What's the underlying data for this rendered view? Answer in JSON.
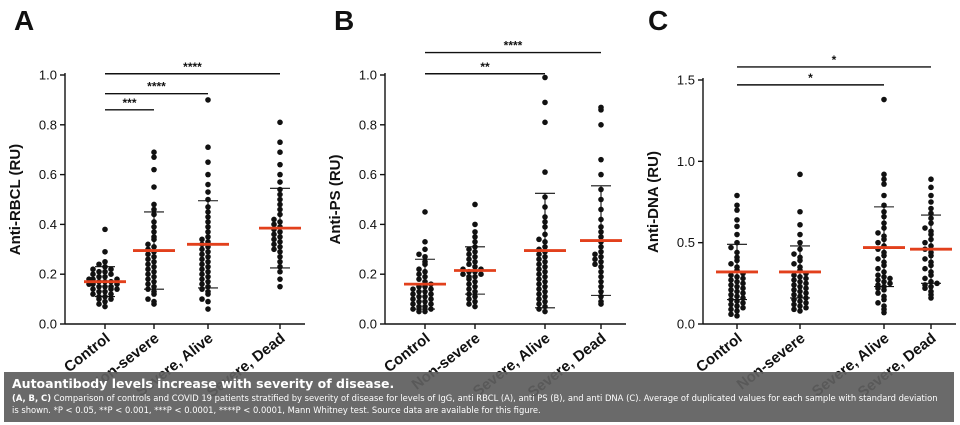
{
  "chart_data": [
    {
      "type": "scatter",
      "panel_label": "A",
      "ylabel": "Anti-RBCL (RU)",
      "ylim": [
        0,
        1.0
      ],
      "yticks": [
        "0.0",
        "0.2",
        "0.4",
        "0.6",
        "0.8",
        "1.0"
      ],
      "ytick_values": [
        0,
        0.2,
        0.4,
        0.6,
        0.8,
        1.0
      ],
      "categories": [
        "Control",
        "Non-severe",
        "Severe, Alive",
        "Severe, Dead"
      ],
      "means": [
        0.17,
        0.295,
        0.32,
        0.385
      ],
      "sd_upper": [
        0.23,
        0.45,
        0.495,
        0.545
      ],
      "sd_lower": [
        0.11,
        0.14,
        0.145,
        0.225
      ],
      "points": [
        [
          0.38,
          0.29,
          0.25,
          0.24,
          0.23,
          0.22,
          0.22,
          0.21,
          0.21,
          0.2,
          0.2,
          0.19,
          0.19,
          0.18,
          0.18,
          0.18,
          0.17,
          0.17,
          0.17,
          0.16,
          0.16,
          0.16,
          0.15,
          0.15,
          0.15,
          0.14,
          0.14,
          0.14,
          0.13,
          0.13,
          0.12,
          0.12,
          0.11,
          0.11,
          0.1,
          0.1,
          0.09,
          0.08,
          0.07
        ],
        [
          0.69,
          0.67,
          0.62,
          0.55,
          0.48,
          0.46,
          0.44,
          0.41,
          0.39,
          0.37,
          0.35,
          0.34,
          0.32,
          0.31,
          0.3,
          0.29,
          0.28,
          0.27,
          0.26,
          0.25,
          0.24,
          0.23,
          0.22,
          0.21,
          0.2,
          0.19,
          0.18,
          0.17,
          0.16,
          0.15,
          0.14,
          0.13,
          0.12,
          0.1,
          0.09,
          0.08
        ],
        [
          0.9,
          0.71,
          0.65,
          0.6,
          0.56,
          0.53,
          0.5,
          0.47,
          0.45,
          0.43,
          0.41,
          0.39,
          0.37,
          0.35,
          0.34,
          0.33,
          0.32,
          0.31,
          0.3,
          0.29,
          0.28,
          0.27,
          0.26,
          0.25,
          0.24,
          0.23,
          0.22,
          0.21,
          0.2,
          0.19,
          0.18,
          0.17,
          0.16,
          0.15,
          0.14,
          0.13,
          0.12,
          0.1,
          0.09,
          0.06
        ],
        [
          0.81,
          0.73,
          0.69,
          0.64,
          0.6,
          0.57,
          0.54,
          0.52,
          0.5,
          0.48,
          0.46,
          0.44,
          0.42,
          0.41,
          0.4,
          0.39,
          0.38,
          0.37,
          0.36,
          0.35,
          0.34,
          0.33,
          0.32,
          0.31,
          0.3,
          0.29,
          0.27,
          0.25,
          0.23,
          0.21,
          0.18,
          0.15
        ]
      ],
      "significance": [
        {
          "from": 0,
          "to": 1,
          "label": "***",
          "y": 0.86
        },
        {
          "from": 0,
          "to": 2,
          "label": "****",
          "y": 0.925
        },
        {
          "from": 0,
          "to": 3,
          "label": "****",
          "y": 1.005
        }
      ]
    },
    {
      "type": "scatter",
      "panel_label": "B",
      "ylabel": "Anti-PS (RU)",
      "ylim": [
        0,
        1.0
      ],
      "yticks": [
        "0.0",
        "0.2",
        "0.4",
        "0.6",
        "0.8",
        "1.0"
      ],
      "ytick_values": [
        0,
        0.2,
        0.4,
        0.6,
        0.8,
        1.0
      ],
      "categories": [
        "Control",
        "Non-severe",
        "Severe, Alive",
        "Severe, Dead"
      ],
      "means": [
        0.16,
        0.215,
        0.295,
        0.335
      ],
      "sd_upper": [
        0.26,
        0.31,
        0.525,
        0.555
      ],
      "sd_lower": [
        0.06,
        0.12,
        0.065,
        0.115
      ],
      "points": [
        [
          0.45,
          0.33,
          0.3,
          0.28,
          0.27,
          0.25,
          0.24,
          0.22,
          0.21,
          0.2,
          0.19,
          0.18,
          0.17,
          0.16,
          0.15,
          0.15,
          0.14,
          0.14,
          0.13,
          0.13,
          0.12,
          0.12,
          0.11,
          0.11,
          0.1,
          0.1,
          0.09,
          0.09,
          0.08,
          0.08,
          0.07,
          0.07,
          0.06,
          0.06,
          0.05,
          0.05
        ],
        [
          0.48,
          0.4,
          0.37,
          0.35,
          0.33,
          0.31,
          0.3,
          0.29,
          0.28,
          0.27,
          0.26,
          0.25,
          0.24,
          0.23,
          0.22,
          0.22,
          0.21,
          0.21,
          0.2,
          0.2,
          0.19,
          0.19,
          0.18,
          0.17,
          0.16,
          0.15,
          0.14,
          0.13,
          0.12,
          0.11,
          0.1,
          0.09,
          0.08,
          0.07
        ],
        [
          0.99,
          0.89,
          0.81,
          0.61,
          0.51,
          0.47,
          0.43,
          0.41,
          0.39,
          0.36,
          0.34,
          0.33,
          0.31,
          0.3,
          0.29,
          0.28,
          0.27,
          0.26,
          0.25,
          0.24,
          0.23,
          0.22,
          0.21,
          0.2,
          0.19,
          0.18,
          0.17,
          0.16,
          0.15,
          0.14,
          0.13,
          0.12,
          0.11,
          0.1,
          0.09,
          0.08,
          0.07,
          0.06,
          0.05
        ],
        [
          0.87,
          0.86,
          0.8,
          0.66,
          0.6,
          0.54,
          0.5,
          0.46,
          0.42,
          0.39,
          0.37,
          0.35,
          0.33,
          0.31,
          0.29,
          0.28,
          0.27,
          0.26,
          0.25,
          0.24,
          0.23,
          0.21,
          0.19,
          0.17,
          0.15,
          0.13,
          0.11,
          0.09,
          0.08
        ]
      ],
      "significance": [
        {
          "from": 0,
          "to": 2,
          "label": "**",
          "y": 1.005
        },
        {
          "from": 0,
          "to": 3,
          "label": "****",
          "y": 1.09
        }
      ]
    },
    {
      "type": "scatter",
      "panel_label": "C",
      "ylabel": "Anti-DNA (RU)",
      "ylim": [
        0,
        1.5
      ],
      "yticks": [
        "0.0",
        "0.5",
        "1.0",
        "1.5"
      ],
      "ytick_values": [
        0,
        0.5,
        1.0,
        1.5
      ],
      "categories": [
        "Control",
        "Non-severe",
        "Severe, Alive",
        "Severe, Dead"
      ],
      "means": [
        0.32,
        0.32,
        0.47,
        0.46
      ],
      "sd_upper": [
        0.49,
        0.48,
        0.72,
        0.67
      ],
      "sd_lower": [
        0.15,
        0.16,
        0.23,
        0.25
      ],
      "points": [
        [
          0.79,
          0.73,
          0.7,
          0.64,
          0.6,
          0.55,
          0.5,
          0.47,
          0.44,
          0.41,
          0.39,
          0.37,
          0.35,
          0.33,
          0.31,
          0.3,
          0.29,
          0.28,
          0.27,
          0.26,
          0.25,
          0.24,
          0.23,
          0.22,
          0.21,
          0.2,
          0.19,
          0.18,
          0.17,
          0.16,
          0.15,
          0.14,
          0.13,
          0.12,
          0.11,
          0.1,
          0.09,
          0.08,
          0.06,
          0.05
        ],
        [
          0.92,
          0.69,
          0.61,
          0.55,
          0.5,
          0.46,
          0.43,
          0.41,
          0.39,
          0.37,
          0.35,
          0.33,
          0.31,
          0.3,
          0.29,
          0.28,
          0.27,
          0.26,
          0.25,
          0.24,
          0.23,
          0.22,
          0.21,
          0.2,
          0.19,
          0.18,
          0.17,
          0.16,
          0.15,
          0.14,
          0.13,
          0.12,
          0.11,
          0.1,
          0.09,
          0.08
        ],
        [
          1.38,
          0.92,
          0.89,
          0.86,
          0.79,
          0.73,
          0.69,
          0.66,
          0.62,
          0.59,
          0.56,
          0.54,
          0.52,
          0.5,
          0.48,
          0.46,
          0.44,
          0.42,
          0.4,
          0.38,
          0.36,
          0.34,
          0.32,
          0.3,
          0.29,
          0.28,
          0.27,
          0.26,
          0.25,
          0.24,
          0.23,
          0.22,
          0.21,
          0.19,
          0.17,
          0.15,
          0.13,
          0.11,
          0.09,
          0.07
        ],
        [
          0.89,
          0.84,
          0.79,
          0.75,
          0.71,
          0.68,
          0.65,
          0.62,
          0.59,
          0.57,
          0.55,
          0.52,
          0.5,
          0.48,
          0.46,
          0.44,
          0.42,
          0.4,
          0.38,
          0.36,
          0.34,
          0.32,
          0.3,
          0.28,
          0.26,
          0.25,
          0.24,
          0.23,
          0.22,
          0.2,
          0.18,
          0.16
        ]
      ],
      "significance": [
        {
          "from": 0,
          "to": 2,
          "label": "*",
          "y": 1.47
        },
        {
          "from": 0,
          "to": 3,
          "label": "*",
          "y": 1.58
        }
      ]
    }
  ],
  "caption": {
    "title": "Autoantibody levels increase with severity of disease.",
    "lead": "(A, B, C)",
    "body": "Comparison of controls and COVID 19 patients stratified by severity of disease for levels of IgG, anti RBCL (A), anti PS (B), and anti DNA (C). Average of duplicated values for each sample with standard deviation is shown. *P < 0.05, **P < 0.001, ***P < 0.0001, ****P < 0.0001, Mann Whitney test. Source data are available for this figure."
  },
  "colors": {
    "mean_line": "#e2401c",
    "points": "#111111",
    "axis": "#111111",
    "caption_bg": "#5f5f5f"
  }
}
